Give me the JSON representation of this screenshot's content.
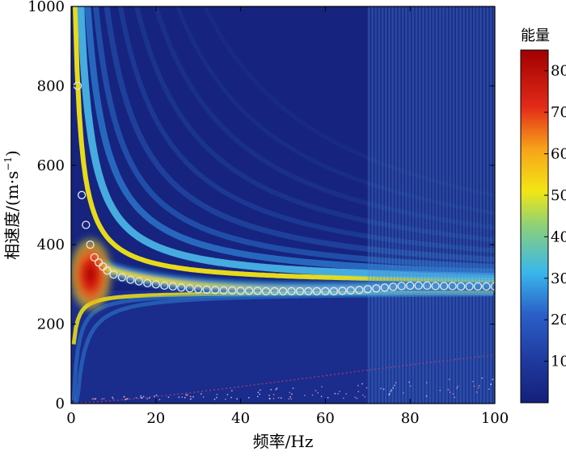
{
  "chart_data": {
    "type": "heatmap",
    "title": "",
    "xlabel": "频率/Hz",
    "ylabel": "相速度/(m·s",
    "ylabel_unit_superscript": "−1",
    "ylabel_unit_close": ")",
    "xlim": [
      0,
      100
    ],
    "ylim": [
      0,
      1000
    ],
    "x_ticks": [
      0,
      20,
      40,
      60,
      80,
      100
    ],
    "y_ticks": [
      0,
      200,
      400,
      600,
      800,
      1000
    ],
    "colorbar": {
      "title": "能量",
      "range": [
        0,
        85
      ],
      "ticks": [
        10,
        20,
        30,
        40,
        50,
        60,
        70,
        80
      ],
      "colormap": "jet"
    },
    "colors": {
      "background_low": "#14207a",
      "peak": "#a00000"
    },
    "dispersion_curve_picks": {
      "marker": "hollow-circle",
      "x": [
        1.5,
        2.5,
        3.5,
        4.5,
        5.5,
        6.5,
        7.5,
        8.5,
        10,
        12,
        14,
        16,
        18,
        20,
        22,
        24,
        26,
        28,
        30,
        32,
        34,
        36,
        38,
        40,
        42,
        44,
        46,
        48,
        50,
        52,
        54,
        56,
        58,
        60,
        62,
        64,
        66,
        68,
        70,
        72,
        74,
        76,
        78,
        80,
        82,
        84,
        86,
        88,
        90,
        92,
        94,
        96,
        98,
        100
      ],
      "y": [
        800,
        525,
        450,
        400,
        368,
        355,
        345,
        335,
        325,
        318,
        312,
        308,
        303,
        300,
        297,
        295,
        292,
        290,
        288,
        287,
        286,
        285,
        285,
        284,
        284,
        284,
        283,
        283,
        283,
        283,
        283,
        283,
        283,
        283,
        283,
        284,
        285,
        286,
        288,
        290,
        292,
        294,
        296,
        297,
        297,
        297,
        296,
        296,
        296,
        295,
        295,
        295,
        295,
        295
      ]
    }
  }
}
